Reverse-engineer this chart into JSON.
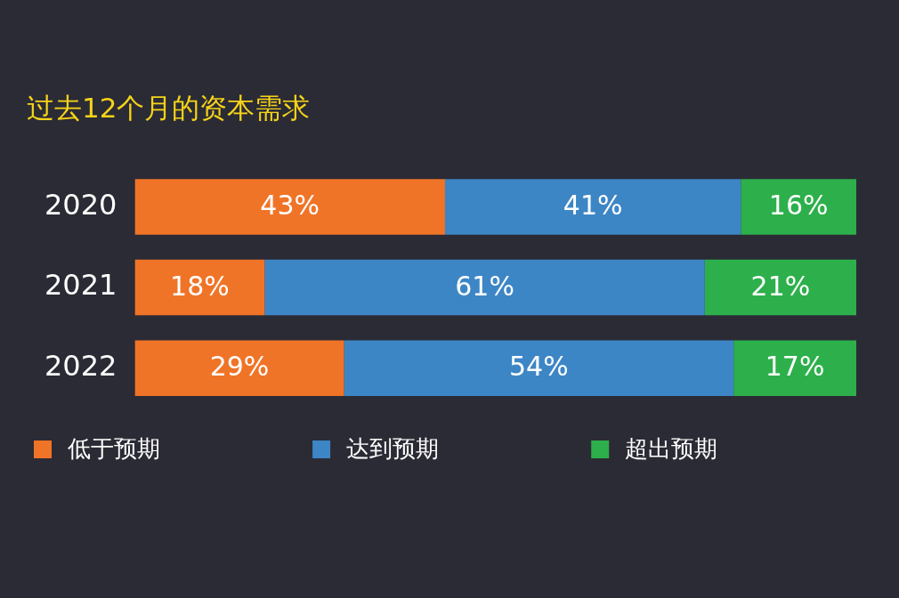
{
  "chart_data": {
    "type": "bar",
    "orientation": "horizontal",
    "stacked": true,
    "title": "过去12个月的资本需求",
    "categories": [
      "2020",
      "2021",
      "2022"
    ],
    "series": [
      {
        "name": "低于预期",
        "color": "#f07427",
        "values": [
          43,
          18,
          29
        ],
        "value_labels": [
          "43%",
          "18%",
          "29%"
        ]
      },
      {
        "name": "达到预期",
        "color": "#3d86c6",
        "values": [
          41,
          61,
          54
        ],
        "value_labels": [
          "41%",
          "61%",
          "54%"
        ]
      },
      {
        "name": "超出预期",
        "color": "#2db04b",
        "values": [
          16,
          21,
          17
        ],
        "value_labels": [
          "16%",
          "21%",
          "17%"
        ]
      }
    ],
    "xlim": [
      0,
      100
    ],
    "tick_labels": "y",
    "legend": "bottom left"
  }
}
